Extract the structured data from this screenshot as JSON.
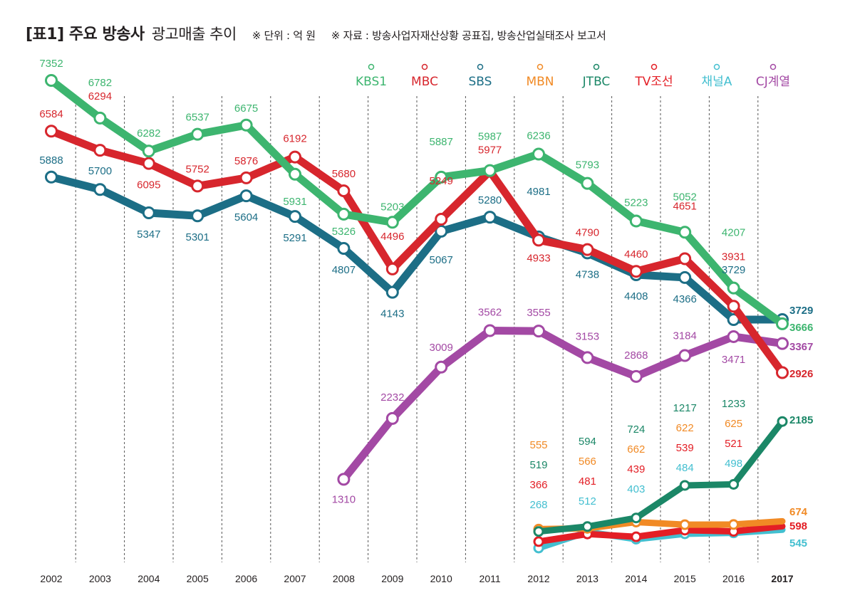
{
  "header": {
    "title_bold": "[표1] 주요 방송사",
    "title_rest": "광고매출 추이",
    "unit_note": "※ 단위 : 억 원",
    "source_note": "※ 자료 : 방송사업자재산상황 공표집, 방송산업실태조사 보고서"
  },
  "chart_data": {
    "type": "line",
    "title": "[표1] 주요 방송사 광고매출 추이",
    "unit": "억 원",
    "categories": [
      "2002",
      "2003",
      "2004",
      "2005",
      "2006",
      "2007",
      "2008",
      "2009",
      "2010",
      "2011",
      "2012",
      "2013",
      "2014",
      "2015",
      "2016",
      "2017"
    ],
    "ylim": [
      0,
      7600
    ],
    "grid": "vertical dashed",
    "legend_position": "top-right",
    "series": [
      {
        "name": "KBS1",
        "color": "#3db56f",
        "values": [
          7352,
          6782,
          6282,
          6537,
          6675,
          5931,
          5326,
          5203,
          5887,
          5987,
          6236,
          5793,
          5223,
          5052,
          4207,
          3666
        ]
      },
      {
        "name": "MBC",
        "color": "#d7262d",
        "values": [
          6584,
          6294,
          6095,
          5752,
          5876,
          6192,
          5680,
          4496,
          5249,
          5977,
          4933,
          4790,
          4460,
          4651,
          3931,
          2926
        ]
      },
      {
        "name": "SBS",
        "color": "#1c6e86",
        "values": [
          5888,
          5700,
          5347,
          5301,
          5604,
          5291,
          4807,
          4143,
          5067,
          5280,
          4981,
          4738,
          4408,
          4366,
          3729,
          3729
        ]
      },
      {
        "name": "MBN",
        "color": "#f18a25",
        "values": [
          null,
          null,
          null,
          null,
          null,
          null,
          null,
          null,
          null,
          null,
          555,
          566,
          662,
          622,
          625,
          674
        ]
      },
      {
        "name": "JTBC",
        "color": "#1b8767",
        "values": [
          null,
          null,
          null,
          null,
          null,
          null,
          null,
          null,
          null,
          null,
          519,
          594,
          724,
          1217,
          1233,
          2185
        ]
      },
      {
        "name": "TV조선",
        "color": "#e31e25",
        "values": [
          null,
          null,
          null,
          null,
          null,
          null,
          null,
          null,
          null,
          null,
          366,
          481,
          439,
          539,
          521,
          598
        ]
      },
      {
        "name": "채널A",
        "color": "#43bfd0",
        "values": [
          null,
          null,
          null,
          null,
          null,
          null,
          null,
          null,
          null,
          null,
          268,
          512,
          403,
          484,
          498,
          545
        ]
      },
      {
        "name": "CJ계열",
        "color": "#a349a4",
        "values": [
          null,
          null,
          null,
          null,
          null,
          null,
          1310,
          2232,
          3009,
          3562,
          3555,
          3153,
          2868,
          3184,
          3471,
          3367
        ]
      }
    ]
  }
}
